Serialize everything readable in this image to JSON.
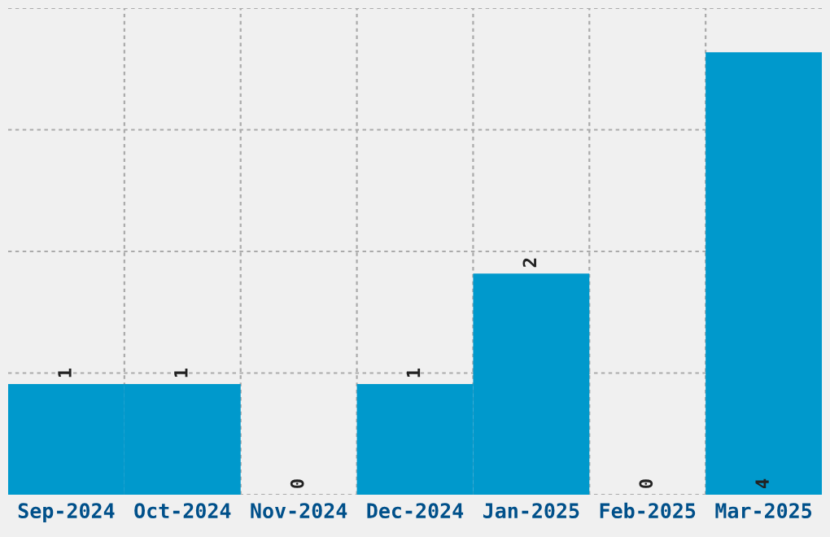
{
  "chart_data": {
    "type": "bar",
    "categories": [
      "Sep-2024",
      "Oct-2024",
      "Nov-2024",
      "Dec-2024",
      "Jan-2025",
      "Feb-2025",
      "Mar-2025"
    ],
    "values": [
      1,
      1,
      0,
      1,
      2,
      0,
      4
    ],
    "color": "#0099cc",
    "ylim": [
      0,
      4.4
    ],
    "tick_labels": "x",
    "grid": true,
    "data_labels": true
  }
}
